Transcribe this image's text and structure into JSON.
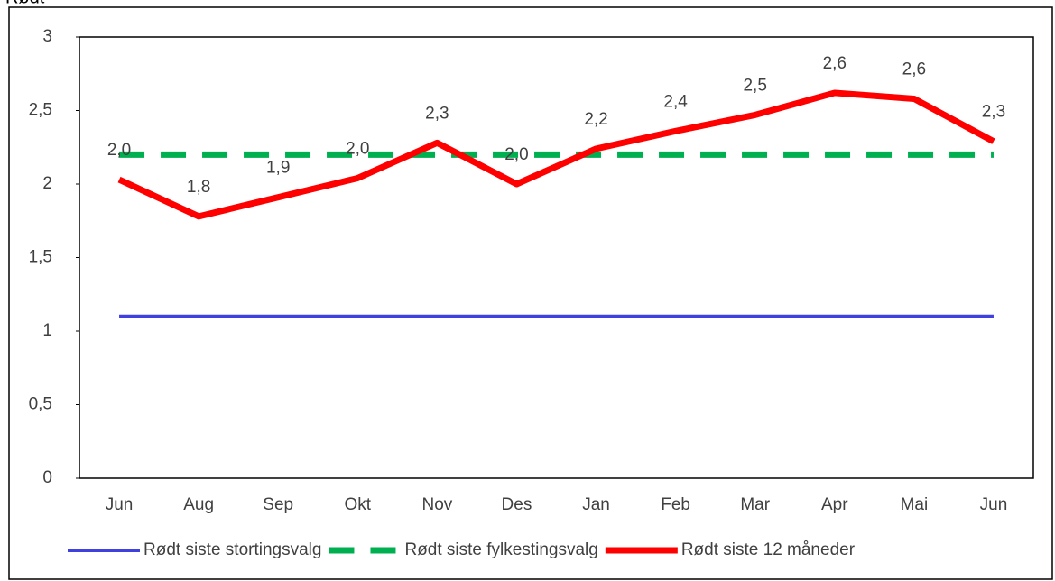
{
  "chart_data": {
    "type": "line",
    "title": "Rødt",
    "categories": [
      "Jun",
      "Aug",
      "Sep",
      "Okt",
      "Nov",
      "Des",
      "Jan",
      "Feb",
      "Mar",
      "Apr",
      "Mai",
      "Jun"
    ],
    "series": [
      {
        "name": "Rødt siste stortingsvalg",
        "color": "#4040e0",
        "dash": false,
        "width": 4,
        "values": [
          1.1,
          1.1,
          1.1,
          1.1,
          1.1,
          1.1,
          1.1,
          1.1,
          1.1,
          1.1,
          1.1,
          1.1
        ]
      },
      {
        "name": "Rødt siste fylkestingsvalg",
        "color": "#00b050",
        "dash": true,
        "width": 7,
        "values": [
          2.2,
          2.2,
          2.2,
          2.2,
          2.2,
          2.2,
          2.2,
          2.2,
          2.2,
          2.2,
          2.2,
          2.2
        ]
      },
      {
        "name": "Rødt siste 12 måneder",
        "color": "#ff0000",
        "dash": false,
        "width": 7,
        "values": [
          2.03,
          1.78,
          1.91,
          2.04,
          2.28,
          2.0,
          2.24,
          2.36,
          2.47,
          2.62,
          2.58,
          2.29
        ],
        "value_labels": [
          "2,0",
          "1,8",
          "1,9",
          "2,0",
          "2,3",
          "2,0",
          "2,2",
          "2,4",
          "2,5",
          "2,6",
          "2,6",
          "2,3"
        ]
      }
    ],
    "ylim": [
      0,
      3
    ],
    "yticks": [
      0,
      {
        "value": 0.5,
        "label": "0,5"
      },
      1,
      {
        "value": 1.5,
        "label": "1,5"
      },
      2,
      {
        "value": 2.5,
        "label": "2,5"
      },
      3
    ],
    "grid": false,
    "legend": "bottom"
  }
}
